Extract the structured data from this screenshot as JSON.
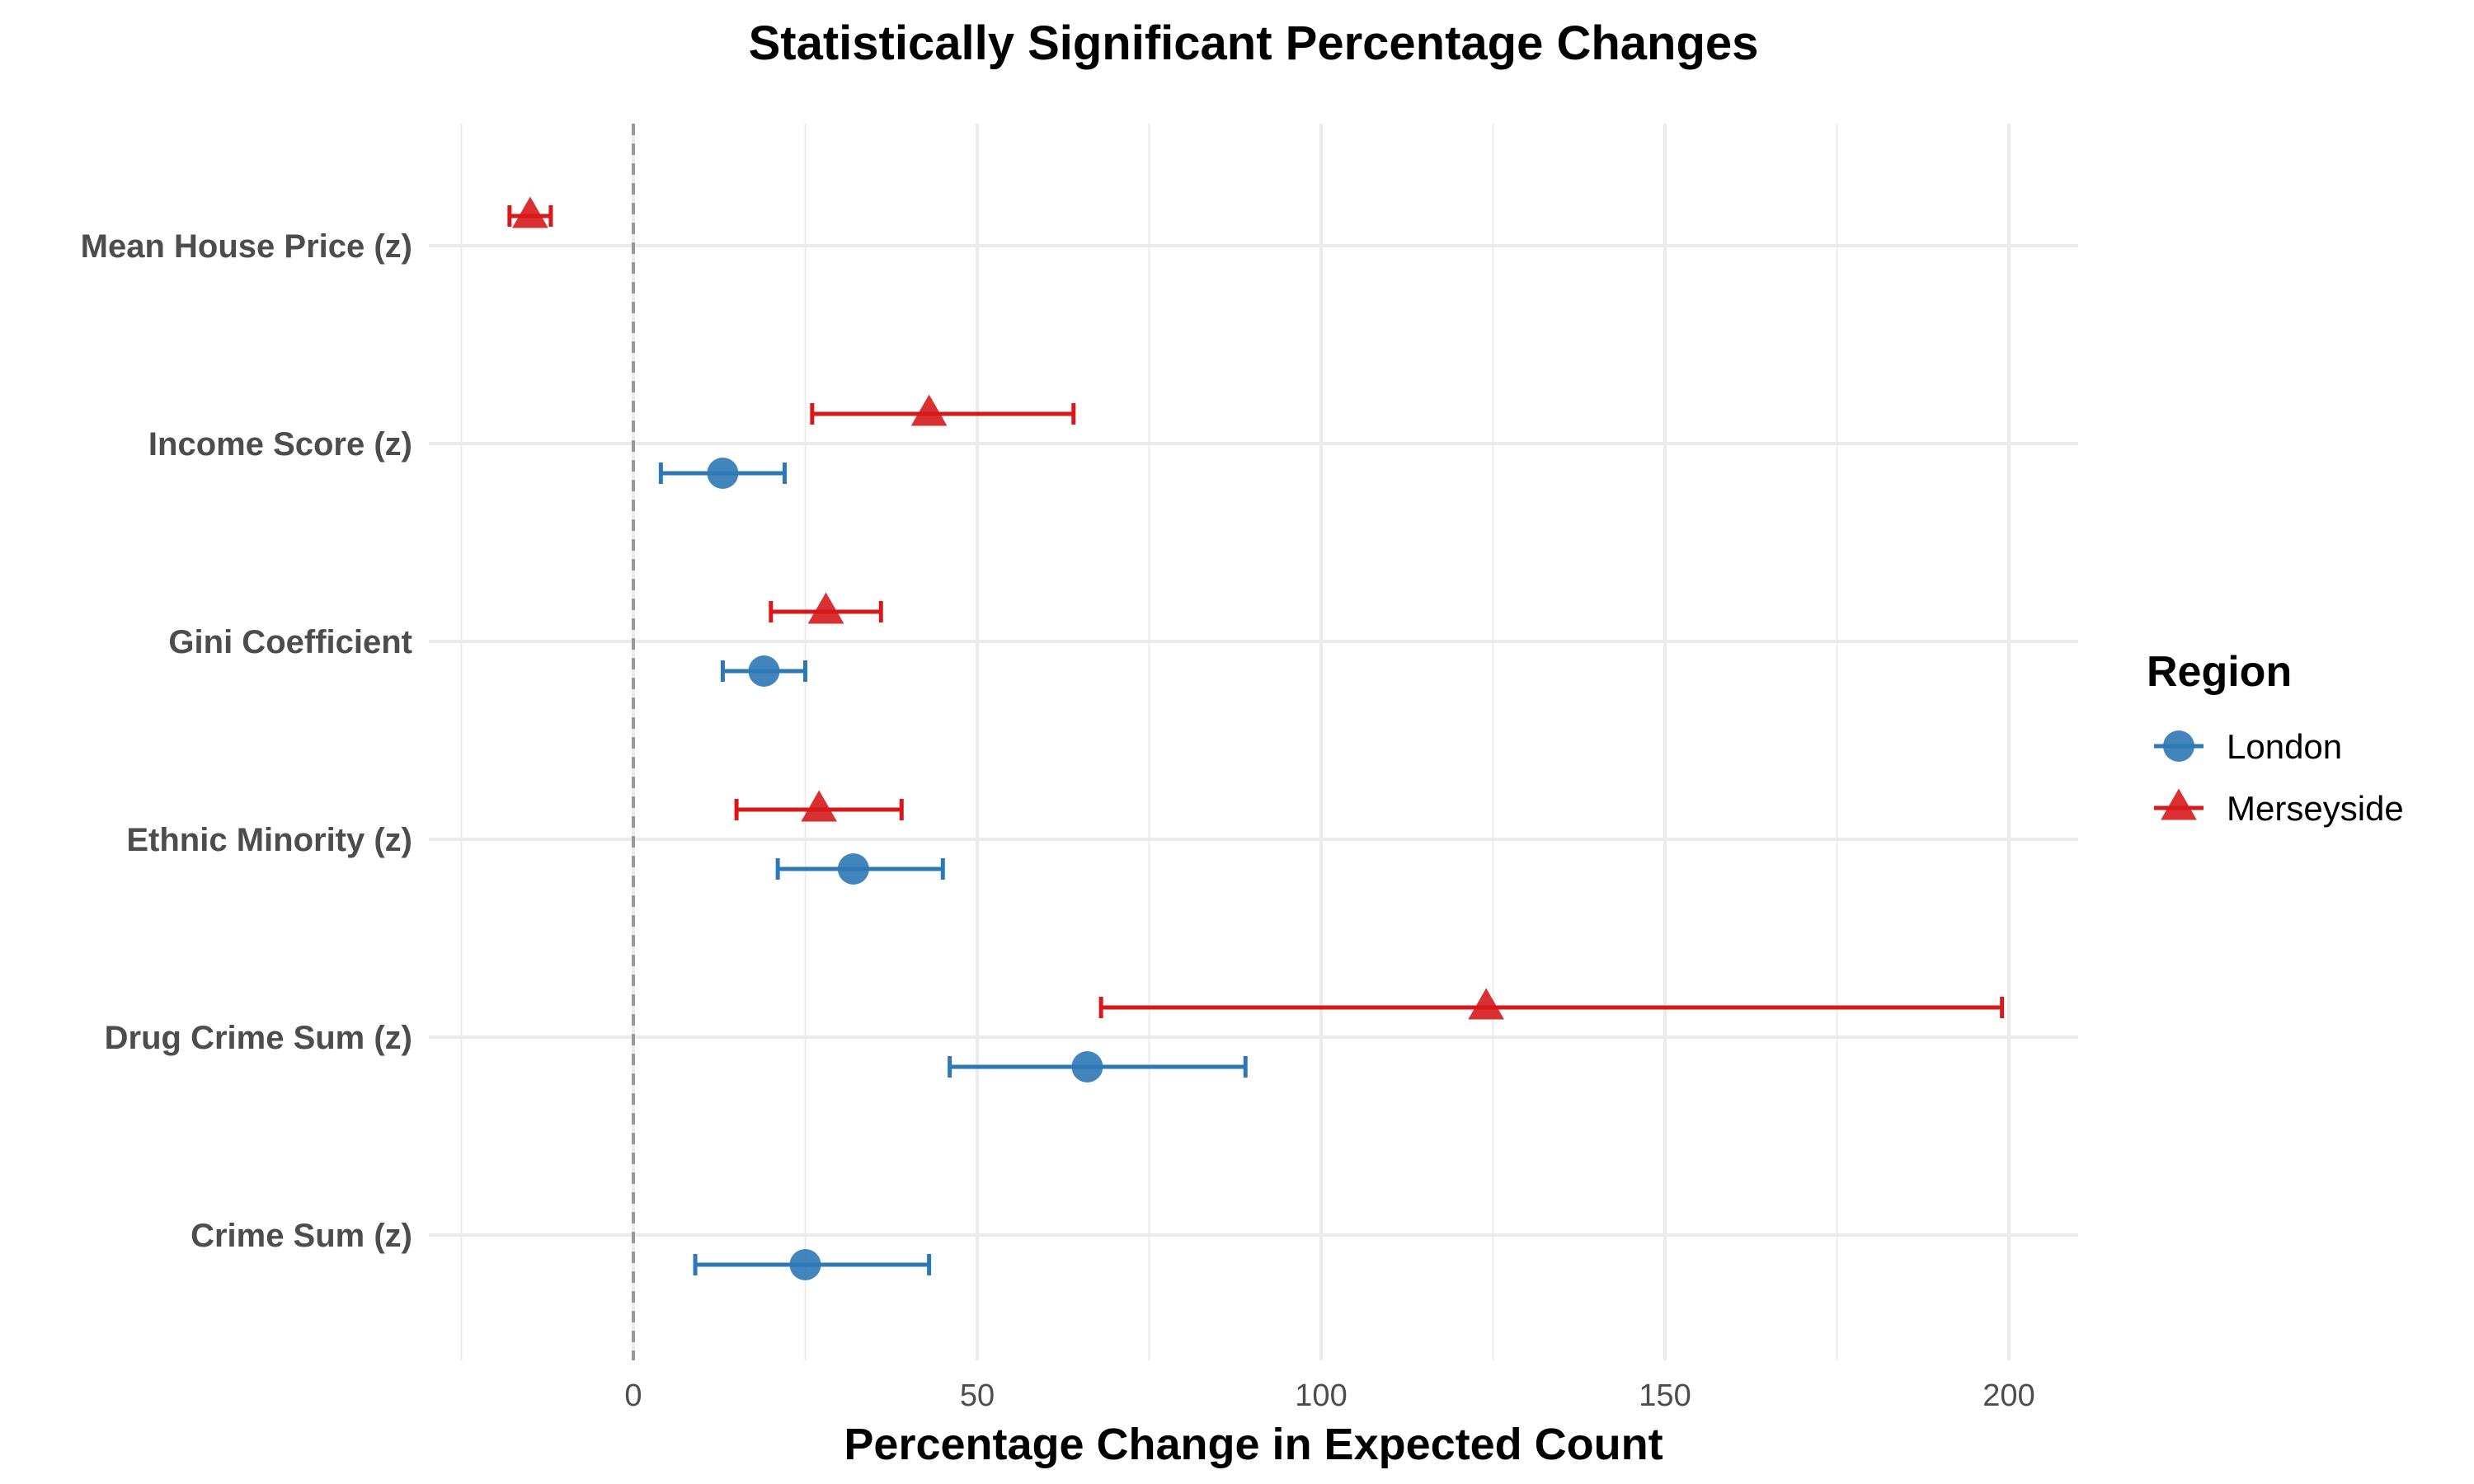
{
  "chart_data": {
    "type": "scatter",
    "title": "Statistically Significant Percentage Changes",
    "xlabel": "Percentage Change in Expected Count",
    "ylabel": "",
    "xlim": [
      -25,
      210
    ],
    "xticks": [
      0,
      50,
      100,
      150,
      200
    ],
    "reference_line": {
      "x": 0,
      "style": "dashed"
    },
    "categories": [
      "Mean House Price (z)",
      "Income Score (z)",
      "Gini Coefficient",
      "Ethnic Minority (z)",
      "Drug Crime Sum (z)",
      "Crime Sum (z)"
    ],
    "legend": {
      "title": "Region",
      "position": "right"
    },
    "series": [
      {
        "name": "London",
        "marker": "circle",
        "color": "#2E78B5",
        "points": [
          {
            "category": "Income Score (z)",
            "value": 13,
            "low": 4,
            "high": 22
          },
          {
            "category": "Gini Coefficient",
            "value": 19,
            "low": 13,
            "high": 25
          },
          {
            "category": "Ethnic Minority (z)",
            "value": 32,
            "low": 21,
            "high": 45
          },
          {
            "category": "Drug Crime Sum (z)",
            "value": 66,
            "low": 46,
            "high": 89
          },
          {
            "category": "Crime Sum (z)",
            "value": 25,
            "low": 9,
            "high": 43
          }
        ]
      },
      {
        "name": "Merseyside",
        "marker": "triangle",
        "color": "#D7191C",
        "points": [
          {
            "category": "Mean House Price (z)",
            "value": -15,
            "low": -18,
            "high": -12
          },
          {
            "category": "Income Score (z)",
            "value": 43,
            "low": 26,
            "high": 64
          },
          {
            "category": "Gini Coefficient",
            "value": 28,
            "low": 20,
            "high": 36
          },
          {
            "category": "Ethnic Minority (z)",
            "value": 27,
            "low": 15,
            "high": 39
          },
          {
            "category": "Drug Crime Sum (z)",
            "value": 124,
            "low": 68,
            "high": 199
          }
        ]
      }
    ]
  }
}
